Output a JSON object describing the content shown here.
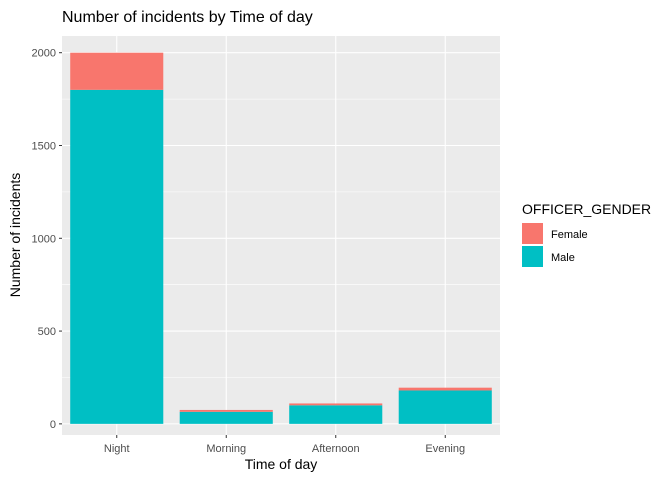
{
  "chart_data": {
    "type": "bar",
    "stacked": true,
    "title": "Number of incidents by Time of day",
    "xlabel": "Time of day",
    "ylabel": "Number of incidents",
    "categories": [
      "Night",
      "Morning",
      "Afternoon",
      "Evening"
    ],
    "series": [
      {
        "name": "Female",
        "color": "#F8766D",
        "values": [
          200,
          10,
          10,
          15
        ]
      },
      {
        "name": "Male",
        "color": "#00BFC4",
        "values": [
          1800,
          65,
          100,
          180
        ]
      }
    ],
    "ylim": [
      -60,
      2090
    ],
    "yticks": [
      0,
      500,
      1000,
      1500,
      2000
    ],
    "ytick_labels": [
      "0",
      "500",
      "1000",
      "1500",
      "2000"
    ],
    "legend": {
      "title": "OFFICER_GENDER",
      "position": "right",
      "items": [
        "Female",
        "Male"
      ]
    },
    "grid": true,
    "panel_background": "#EBEBEB"
  }
}
